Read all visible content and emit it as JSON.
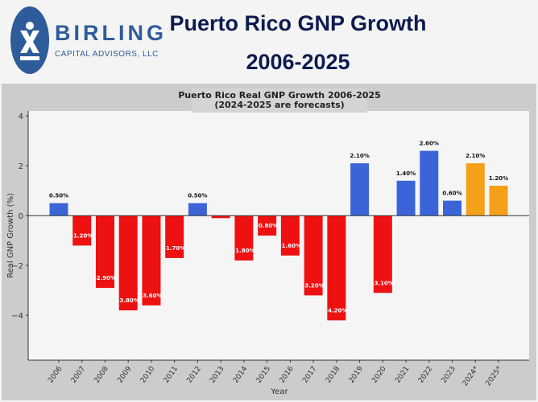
{
  "header": {
    "logo_name": "BIRLING",
    "logo_sub": "CAPITAL ADVISORS, LLC",
    "title_line1": "Puerto Rico GNP Growth",
    "title_line2": "2006-2025"
  },
  "colors": {
    "positive": "#3b64d8",
    "negative": "#ee1111",
    "forecast": "#f5a01a",
    "title": "#0d1b4f"
  },
  "chart_data": {
    "type": "bar",
    "title": "Puerto Rico Real GNP Growth 2006-2025",
    "subtitle": "(2024-2025 are forecasts)",
    "xlabel": "Year",
    "ylabel": "Real GNP Growth (%)",
    "ylim": [
      -5.8,
      4.2
    ],
    "yticks": [
      -4,
      -2,
      0,
      2,
      4
    ],
    "categories": [
      "2006",
      "2007",
      "2008",
      "2009",
      "2010",
      "2011",
      "2012",
      "2013",
      "2014",
      "2015",
      "2016",
      "2017",
      "2018",
      "2019",
      "2020",
      "2021",
      "2022",
      "2023",
      "2024*",
      "2025*"
    ],
    "values": [
      0.5,
      -1.2,
      -2.9,
      -3.8,
      -3.6,
      -1.7,
      0.5,
      -0.1,
      -1.8,
      -0.8,
      -1.6,
      -3.2,
      -4.2,
      2.1,
      -3.1,
      1.4,
      2.6,
      0.6,
      2.1,
      1.2
    ],
    "labels": [
      "0.50%",
      "-1.20%",
      "-2.90%",
      "-3.80%",
      "-3.60%",
      "-1.70%",
      "0.50%",
      "",
      "-1.80%",
      "-0.80%",
      "-1.60%",
      "-3.20%",
      "-4.20%",
      "2.10%",
      "-3.10%",
      "1.40%",
      "2.60%",
      "0.60%",
      "2.10%",
      "1.20%"
    ],
    "forecast": [
      false,
      false,
      false,
      false,
      false,
      false,
      false,
      false,
      false,
      false,
      false,
      false,
      false,
      false,
      false,
      false,
      false,
      false,
      true,
      true
    ],
    "grid": false
  }
}
